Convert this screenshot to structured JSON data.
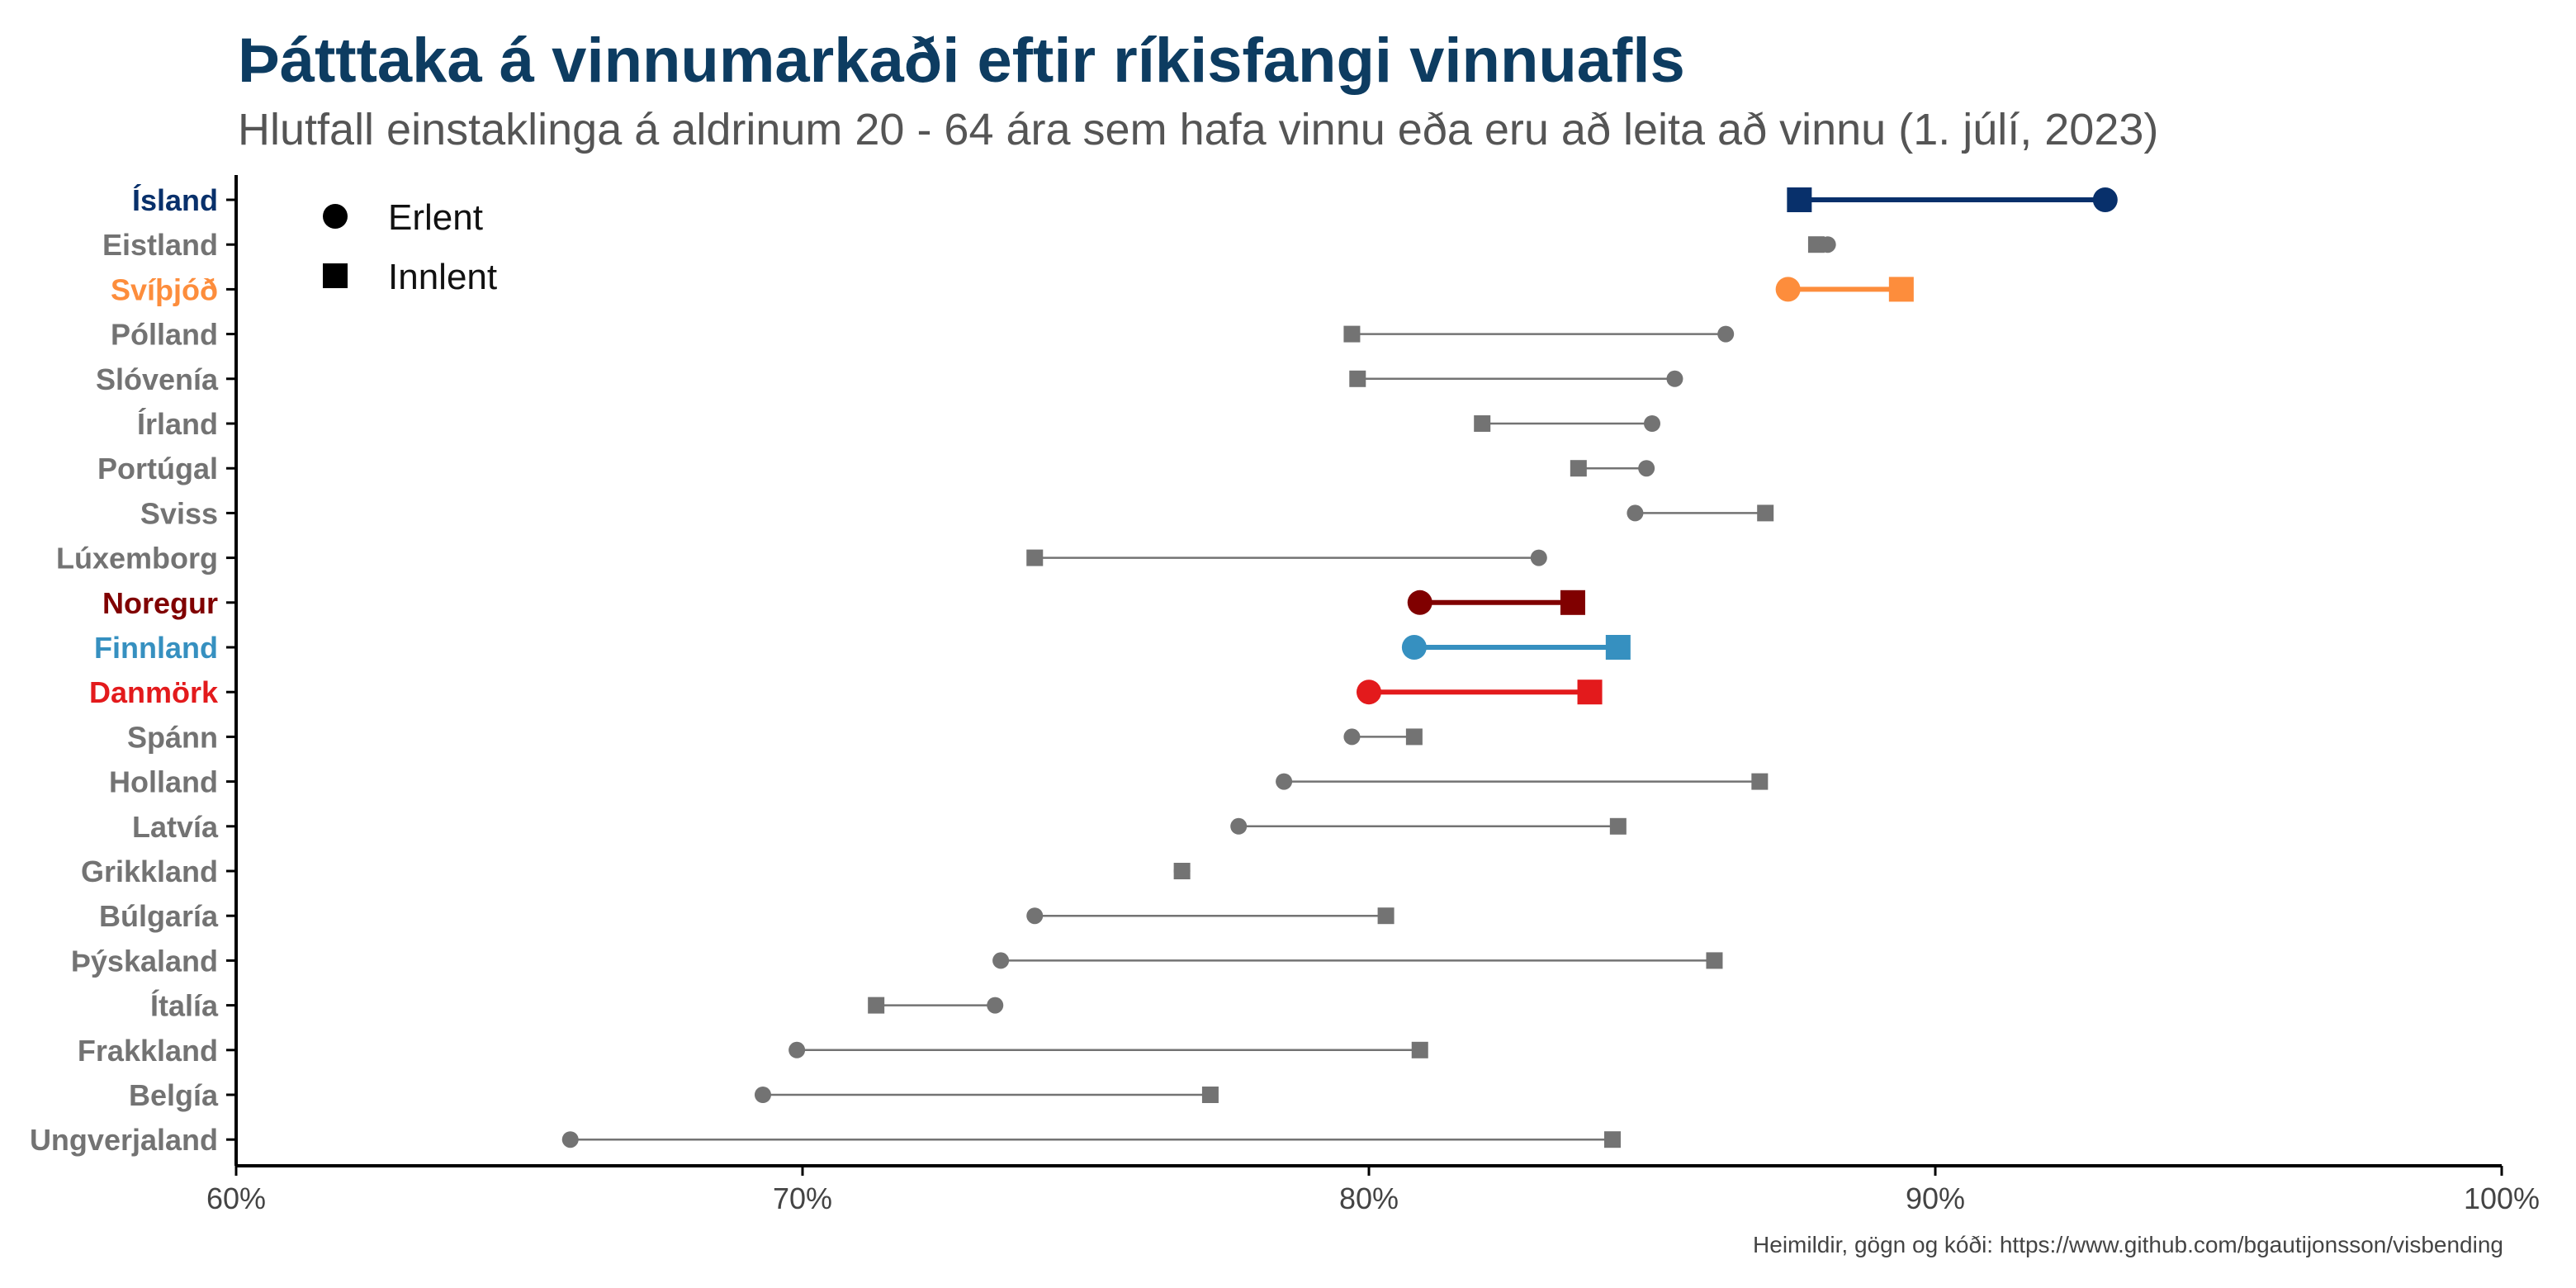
{
  "chart_data": {
    "type": "dumbbell",
    "title": "Þátttaka á vinnumarkaði eftir ríkisfangi vinnuafls",
    "subtitle": "Hlutfall einstaklinga á aldrinum 20 - 64 ára sem hafa vinnu eða eru að leita að vinnu (1. júlí, 2023)",
    "caption": "Heimildir, gögn og kóði: https://www.github.com/bgautijonsson/visbending",
    "x_axis": {
      "range": [
        0.6,
        1.0
      ],
      "ticks": [
        0.6,
        0.7,
        0.8,
        0.9,
        1.0
      ],
      "tick_labels": [
        "60%",
        "70%",
        "80%",
        "90%",
        "100%"
      ]
    },
    "legend": {
      "placement": "top-left",
      "entries": [
        {
          "label": "Erlent",
          "shape": "circle"
        },
        {
          "label": "Innlent",
          "shape": "square"
        }
      ]
    },
    "default_color": "#737373",
    "countries": [
      {
        "name": "Ísland",
        "erlent": 0.93,
        "innlent": 0.876,
        "highlight": true,
        "color": "#08306b"
      },
      {
        "name": "Eistland",
        "erlent": 0.881,
        "innlent": 0.879,
        "highlight": false,
        "color": "#737373"
      },
      {
        "name": "Svíþjóð",
        "erlent": 0.874,
        "innlent": 0.894,
        "highlight": true,
        "color": "#fd8d3c"
      },
      {
        "name": "Pólland",
        "erlent": 0.863,
        "innlent": 0.797,
        "highlight": false,
        "color": "#737373"
      },
      {
        "name": "Slóvenía",
        "erlent": 0.854,
        "innlent": 0.798,
        "highlight": false,
        "color": "#737373"
      },
      {
        "name": "Írland",
        "erlent": 0.85,
        "innlent": 0.82,
        "highlight": false,
        "color": "#737373"
      },
      {
        "name": "Portúgal",
        "erlent": 0.849,
        "innlent": 0.837,
        "highlight": false,
        "color": "#737373"
      },
      {
        "name": "Sviss",
        "erlent": 0.847,
        "innlent": 0.87,
        "highlight": false,
        "color": "#737373"
      },
      {
        "name": "Lúxemborg",
        "erlent": 0.83,
        "innlent": 0.741,
        "highlight": false,
        "color": "#737373"
      },
      {
        "name": "Noregur",
        "erlent": 0.809,
        "innlent": 0.836,
        "highlight": true,
        "color": "#800000"
      },
      {
        "name": "Finnland",
        "erlent": 0.808,
        "innlent": 0.844,
        "highlight": true,
        "color": "#3690c0"
      },
      {
        "name": "Danmörk",
        "erlent": 0.8,
        "innlent": 0.839,
        "highlight": true,
        "color": "#e31a1c"
      },
      {
        "name": "Spánn",
        "erlent": 0.797,
        "innlent": 0.808,
        "highlight": false,
        "color": "#737373"
      },
      {
        "name": "Holland",
        "erlent": 0.785,
        "innlent": 0.869,
        "highlight": false,
        "color": "#737373"
      },
      {
        "name": "Latvía",
        "erlent": 0.777,
        "innlent": 0.844,
        "highlight": false,
        "color": "#737373"
      },
      {
        "name": "Grikkland",
        "erlent": 0.767,
        "innlent": 0.767,
        "highlight": false,
        "color": "#737373"
      },
      {
        "name": "Búlgaría",
        "erlent": 0.741,
        "innlent": 0.803,
        "highlight": false,
        "color": "#737373"
      },
      {
        "name": "Þýskaland",
        "erlent": 0.735,
        "innlent": 0.861,
        "highlight": false,
        "color": "#737373"
      },
      {
        "name": "Ítalía",
        "erlent": 0.734,
        "innlent": 0.713,
        "highlight": false,
        "color": "#737373"
      },
      {
        "name": "Frakkland",
        "erlent": 0.699,
        "innlent": 0.809,
        "highlight": false,
        "color": "#737373"
      },
      {
        "name": "Belgía",
        "erlent": 0.693,
        "innlent": 0.772,
        "highlight": false,
        "color": "#737373"
      },
      {
        "name": "Ungverjaland",
        "erlent": 0.659,
        "innlent": 0.843,
        "highlight": false,
        "color": "#737373"
      }
    ]
  }
}
